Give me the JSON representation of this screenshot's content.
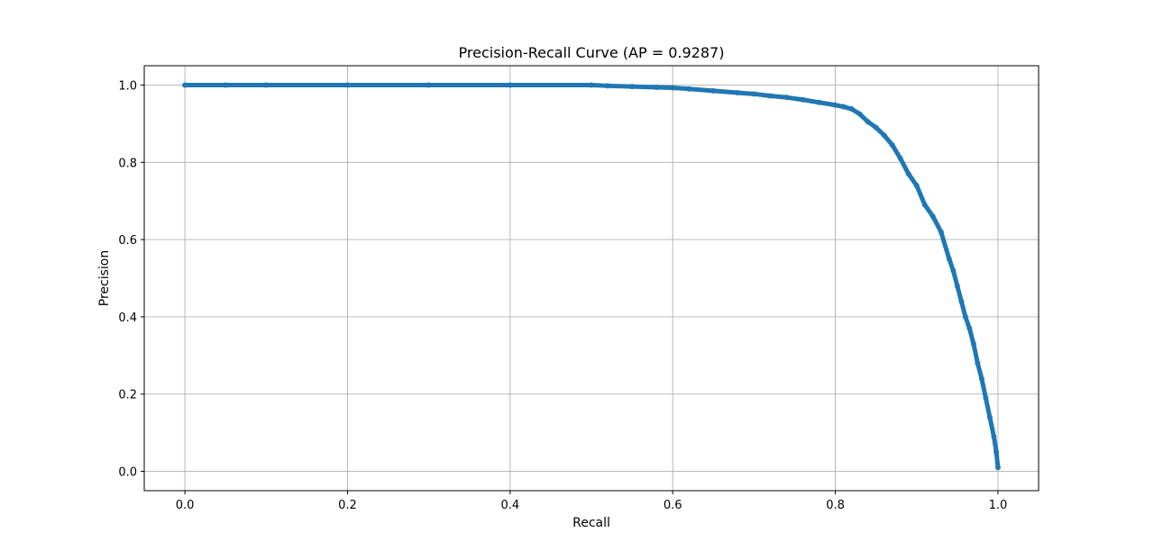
{
  "chart_data": {
    "type": "line",
    "title": "Precision-Recall Curve (AP = 0.9287)",
    "xlabel": "Recall",
    "ylabel": "Precision",
    "xlim": [
      -0.05,
      1.05
    ],
    "ylim": [
      -0.05,
      1.05
    ],
    "xticks": [
      0.0,
      0.2,
      0.4,
      0.6,
      0.8,
      1.0
    ],
    "xtick_labels": [
      "0.0",
      "0.2",
      "0.4",
      "0.6",
      "0.8",
      "1.0"
    ],
    "yticks": [
      0.0,
      0.2,
      0.4,
      0.6,
      0.8,
      1.0
    ],
    "ytick_labels": [
      "0.0",
      "0.2",
      "0.4",
      "0.6",
      "0.8",
      "1.0"
    ],
    "grid": true,
    "marker": "dot",
    "series": [
      {
        "color": "#1f77b4",
        "x": [
          0.0,
          0.05,
          0.1,
          0.2,
          0.3,
          0.4,
          0.5,
          0.52,
          0.55,
          0.58,
          0.6,
          0.62,
          0.65,
          0.68,
          0.7,
          0.72,
          0.74,
          0.76,
          0.78,
          0.8,
          0.81,
          0.82,
          0.83,
          0.84,
          0.85,
          0.86,
          0.87,
          0.88,
          0.89,
          0.9,
          0.91,
          0.92,
          0.93,
          0.94,
          0.945,
          0.95,
          0.955,
          0.96,
          0.965,
          0.97,
          0.975,
          0.98,
          0.985,
          0.99,
          0.995,
          0.998,
          1.0
        ],
        "y": [
          1.0,
          1.0,
          1.0,
          1.0,
          1.0,
          1.0,
          1.0,
          0.998,
          0.996,
          0.994,
          0.993,
          0.99,
          0.985,
          0.98,
          0.977,
          0.972,
          0.968,
          0.962,
          0.955,
          0.948,
          0.944,
          0.938,
          0.925,
          0.905,
          0.89,
          0.87,
          0.845,
          0.81,
          0.77,
          0.74,
          0.69,
          0.66,
          0.62,
          0.55,
          0.52,
          0.48,
          0.44,
          0.4,
          0.37,
          0.33,
          0.28,
          0.24,
          0.19,
          0.14,
          0.09,
          0.05,
          0.01
        ]
      }
    ]
  }
}
